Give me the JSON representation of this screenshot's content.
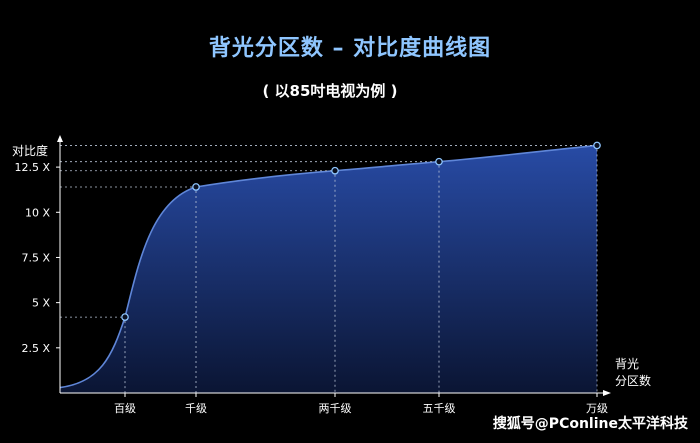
{
  "title": "背光分区数 – 对比度曲线图",
  "subtitle": "( 以85吋电视为例 )",
  "watermark": "搜狐号@PConline太平洋科技",
  "colors": {
    "background": "#000000",
    "title": "#8fc6ff",
    "curve": "#5f86d8",
    "fill_top": "#2a4fae",
    "fill_bottom": "#0b1636",
    "point": "#8fc6ff",
    "axis": "#ffffff",
    "guide": "#b9c4d6"
  },
  "chart_data": {
    "type": "area",
    "ylabel": "对比度",
    "xlabel": "背光\n分区数",
    "y_ticks": [
      "2.5 X",
      "5 X",
      "7.5 X",
      "10 X",
      "12.5 X"
    ],
    "y_tick_values": [
      2.5,
      5,
      7.5,
      10,
      12.5
    ],
    "ylim": [
      0,
      14
    ],
    "x_ticks": [
      "百级",
      "千级",
      "两千级",
      "五千级",
      "万级"
    ],
    "x_tick_values": [
      100,
      1000,
      2000,
      5000,
      10000
    ],
    "x_scale": "ordinal-ish (百级 → 万级)",
    "series": [
      {
        "points": [
          {
            "x": "百级",
            "y": 4.2
          },
          {
            "x": "千级",
            "y": 11.4
          },
          {
            "x": "两千级",
            "y": 12.3
          },
          {
            "x": "五千级",
            "y": 12.8
          },
          {
            "x": "万级",
            "y": 13.7
          }
        ]
      }
    ],
    "grid": false,
    "legend": "none"
  }
}
